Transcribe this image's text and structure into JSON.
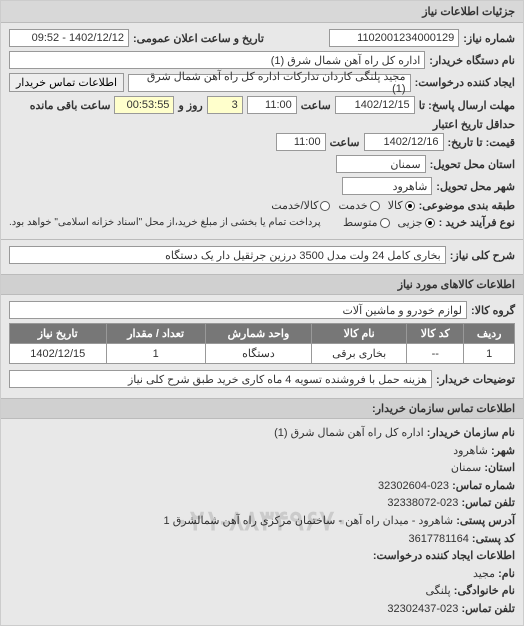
{
  "titleBar": "جزئیات اطلاعات نیاز",
  "header": {
    "requestNoLabel": "شماره نیاز:",
    "requestNo": "1102001234000129",
    "announceLabel": "تاریخ و ساعت اعلان عمومی:",
    "announceValue": "1402/12/12 - 09:52",
    "buyerDeptLabel": "نام دستگاه خریدار:",
    "buyerDept": "اداره کل راه آهن شمال شرق (1)",
    "creatorLabel": "ایجاد کننده درخواست:",
    "creator": "مجید پلنگی کاردان تدارکات اداره کل راه آهن شمال شرق (1)",
    "contactBtn": "اطلاعات تماس خریدار",
    "deadlineSendLabel": "مهلت ارسال پاسخ: تا",
    "deadlineSendDate": "1402/12/15",
    "timeLabel": "ساعت",
    "deadlineSendTime": "11:00",
    "dayLabel": "روز و",
    "daysLeft": "3",
    "timeLeft": "00:53:55",
    "timeLeftLabel": "ساعت باقی مانده",
    "validityLabel": "حداقل تاریخ اعتبار",
    "priceLabel": "قیمت: تا تاریخ:",
    "validityDate": "1402/12/16",
    "validityTime": "11:00",
    "provinceLabel": "استان محل تحویل:",
    "province": "سمنان",
    "cityLabel": "شهر محل تحویل:",
    "city": "شاهرود",
    "budgetLabel": "طبقه بندی موضوعی:",
    "budgetOptions": {
      "goods": "کالا",
      "service": "خدمت",
      "both": "کالا/خدمت"
    },
    "processLabel": "نوع فرآیند خرید :",
    "processOptions": {
      "partial": "جزیی",
      "medium": "متوسط"
    },
    "processNote": "پرداخت تمام یا بخشی از مبلغ خرید،از محل \"اسناد خزانه اسلامی\" خواهد بود."
  },
  "subject": {
    "label": "شرح کلی نیاز:",
    "value": "بخاری کامل 24 ولت مدل 3500 درزین جرثقیل دار یک دستگاه"
  },
  "goodsHeader": "اطلاعات کالاهای مورد نیاز",
  "group": {
    "label": "گروه کالا:",
    "value": "لوازم خودرو و ماشین آلات"
  },
  "table": {
    "columns": [
      "ردیف",
      "کد کالا",
      "نام کالا",
      "واحد شمارش",
      "تعداد / مقدار",
      "تاریخ نیاز"
    ],
    "rows": [
      [
        "1",
        "--",
        "بخاری برقی",
        "دستگاه",
        "1",
        "1402/12/15"
      ]
    ]
  },
  "buyerNote": {
    "label": "توضیحات خریدار:",
    "value": "هزینه حمل با فروشنده تسویه 4 ماه کاری خرید طبق شرح کلی نیاز"
  },
  "contactHeader": "اطلاعات تماس سازمان خریدار:",
  "contact": {
    "orgLabel": "نام سازمان خریدار:",
    "org": "اداره کل راه آهن شمال شرق (1)",
    "cityL": "شهر:",
    "city": "شاهرود",
    "provL": "استان:",
    "prov": "سمنان",
    "phoneL": "شماره تماس:",
    "phone": "023-32302604",
    "faxL": "تلفن تماس:",
    "fax": "023-32338072",
    "addrL": "آدرس پستی:",
    "addr": "شاهرود - میدان راه آهن - ساختمان مرکزی راه آهن شمالشرق 1",
    "postL": "کد پستی:",
    "post": "3617781164",
    "creatorHeader": "اطلاعات ایجاد کننده درخواست:",
    "nameL": "نام:",
    "name": "مجید",
    "famL": "نام خانوادگی:",
    "fam": "پلنگی",
    "telL": "تلفن تماس:",
    "tel": "023-32302437"
  },
  "watermark": "۰۲۱-۸۸۳۴۹۶۷۰"
}
